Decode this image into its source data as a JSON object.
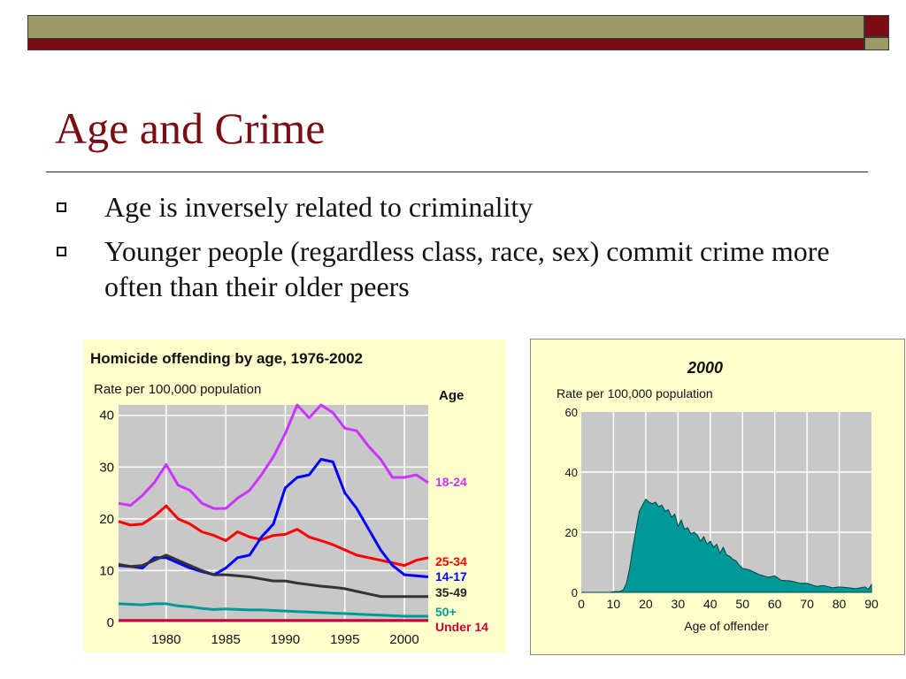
{
  "slide": {
    "title": "Age and Crime",
    "bullets": [
      "Age is inversely related to criminality",
      "Younger people (regardless class, race, sex) commit crime more often than their older peers"
    ]
  },
  "colors": {
    "dark_red": "#7a0c14",
    "olive": "#9c9a66",
    "chart_bg": "#ffffcc",
    "plot_bg": "#c8c8c8",
    "teal_fill": "#009999"
  },
  "chart_data": [
    {
      "type": "line",
      "title": "Homicide offending by age, 1976-2002",
      "ylabel": "Rate per 100,000 population",
      "legend_title": "Age",
      "legend_placement": "right",
      "grid": true,
      "x": [
        1976,
        1977,
        1978,
        1979,
        1980,
        1981,
        1982,
        1983,
        1984,
        1985,
        1986,
        1987,
        1988,
        1989,
        1990,
        1991,
        1992,
        1993,
        1994,
        1995,
        1996,
        1997,
        1998,
        1999,
        2000,
        2001,
        2002
      ],
      "xlim": [
        1976,
        2002
      ],
      "ylim": [
        0,
        42
      ],
      "xticks": [
        "1980",
        "1985",
        "1990",
        "1995",
        "2000"
      ],
      "yticks": [
        "0",
        "10",
        "20",
        "30",
        "40"
      ],
      "series": [
        {
          "name": "18-24",
          "color": "#cc33ff",
          "values": [
            23,
            22.6,
            24.5,
            27,
            30.5,
            26.5,
            25.5,
            23,
            22,
            22,
            24,
            25.5,
            28.5,
            32,
            36.5,
            42,
            39.5,
            42,
            40.5,
            37.5,
            37,
            34,
            31.5,
            28,
            28,
            28.5,
            27
          ]
        },
        {
          "name": "25-34",
          "color": "#ff0000",
          "values": [
            19.5,
            18.8,
            19,
            20.5,
            22.5,
            20,
            19,
            17.5,
            16.8,
            15.8,
            17.5,
            16.5,
            16,
            16.8,
            17,
            18,
            16.5,
            15.8,
            15,
            14,
            13,
            12.5,
            12,
            11.5,
            11,
            12,
            12.5
          ]
        },
        {
          "name": "14-17",
          "color": "#0000ff",
          "values": [
            11,
            10.8,
            10.5,
            12.5,
            12.5,
            11.5,
            10.5,
            9.8,
            9.2,
            10.5,
            12.5,
            13,
            16.5,
            19,
            26,
            28,
            28.5,
            31.5,
            31,
            25,
            22,
            18,
            14,
            11,
            9.2,
            9,
            8.8
          ]
        },
        {
          "name": "35-49",
          "color": "#333333",
          "values": [
            11.2,
            10.8,
            11,
            12,
            13,
            12,
            11,
            10,
            9.2,
            9.2,
            9,
            8.8,
            8.4,
            8,
            8,
            7.6,
            7.3,
            7,
            6.8,
            6.5,
            6,
            5.5,
            5,
            5,
            5,
            5,
            5
          ]
        },
        {
          "name": "50+",
          "color": "#009999",
          "values": [
            3.6,
            3.5,
            3.4,
            3.6,
            3.6,
            3.2,
            3,
            2.7,
            2.5,
            2.6,
            2.5,
            2.4,
            2.4,
            2.3,
            2.2,
            2.1,
            2,
            1.9,
            1.8,
            1.7,
            1.6,
            1.5,
            1.4,
            1.3,
            1.2,
            1.2,
            1.2
          ]
        },
        {
          "name": "Under 14",
          "color": "#cc0033",
          "values": [
            0.4,
            0.4,
            0.4,
            0.4,
            0.4,
            0.4,
            0.4,
            0.4,
            0.4,
            0.4,
            0.4,
            0.4,
            0.4,
            0.4,
            0.4,
            0.4,
            0.4,
            0.4,
            0.4,
            0.4,
            0.4,
            0.4,
            0.4,
            0.4,
            0.4,
            0.4,
            0.4
          ]
        }
      ]
    },
    {
      "type": "area",
      "title": "2000",
      "ylabel": "Rate per 100,000 population",
      "xlabel": "Age of offender",
      "grid": true,
      "xlim": [
        0,
        90
      ],
      "ylim": [
        0,
        60
      ],
      "xticks": [
        "0",
        "10",
        "20",
        "30",
        "40",
        "50",
        "60",
        "70",
        "80",
        "90"
      ],
      "yticks": [
        "0",
        "20",
        "40",
        "60"
      ],
      "x": [
        0,
        9,
        10,
        12,
        13,
        14,
        15,
        16,
        17,
        18,
        19,
        20,
        21,
        22,
        23,
        24,
        25,
        26,
        27,
        28,
        29,
        30,
        31,
        32,
        33,
        34,
        35,
        36,
        37,
        38,
        39,
        40,
        41,
        42,
        43,
        44,
        45,
        46,
        47,
        48,
        49,
        50,
        52,
        55,
        58,
        60,
        62,
        65,
        68,
        70,
        73,
        75,
        78,
        80,
        83,
        85,
        88,
        89,
        90
      ],
      "values": [
        0,
        0,
        0.2,
        0.3,
        0.8,
        3,
        8,
        15,
        21,
        27,
        29,
        31,
        30,
        29.5,
        30,
        28.5,
        29,
        27,
        27.5,
        25,
        26,
        22,
        24,
        21,
        21.5,
        19.5,
        20,
        19,
        17,
        18.5,
        16,
        17,
        15,
        16,
        13,
        15,
        12.5,
        12,
        11,
        10.5,
        9,
        8,
        7.5,
        6,
        5,
        5.5,
        4,
        3.8,
        3,
        3,
        2,
        2.3,
        1.5,
        1.8,
        1.5,
        1.2,
        1.8,
        1,
        2.5
      ]
    }
  ]
}
